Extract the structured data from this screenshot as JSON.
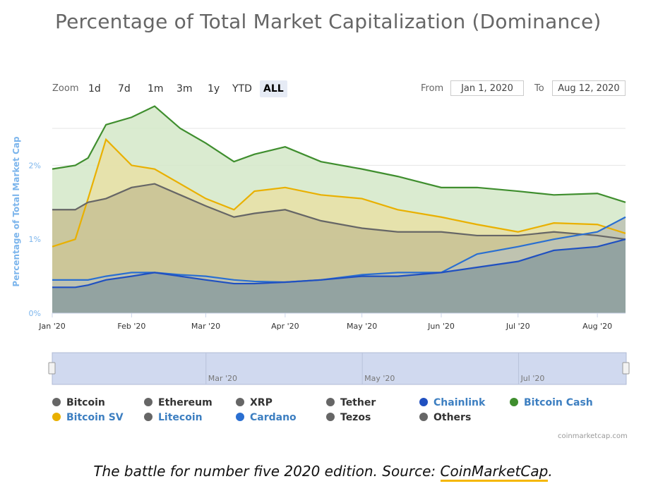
{
  "title": "Percentage of Total Market Capitalization (Dominance)",
  "zoom": {
    "label": "Zoom",
    "buttons": [
      "1d",
      "7d",
      "1m",
      "3m",
      "1y",
      "YTD",
      "ALL"
    ],
    "selected": "ALL"
  },
  "range": {
    "from_label": "From",
    "from_value": "Jan 1, 2020",
    "to_label": "To",
    "to_value": "Aug 12, 2020"
  },
  "credit": "coinmarketcap.com",
  "caption": {
    "text": "The battle for number five 2020 edition. Source: ",
    "link": "CoinMarketCap",
    "end": "."
  },
  "chart_data": {
    "type": "area",
    "title": "Percentage of Total Market Capitalization (Dominance)",
    "ylabel": "Percentage of Total Market Cap",
    "xlabel": "",
    "ylim": [
      0,
      2.5
    ],
    "yticks": [
      "0%",
      "1%",
      "2%"
    ],
    "xticks": [
      "Jan '20",
      "Feb '20",
      "Mar '20",
      "Apr '20",
      "May '20",
      "Jun '20",
      "Jul '20",
      "Aug '20"
    ],
    "x": [
      "2020-01-01",
      "2020-01-10",
      "2020-01-15",
      "2020-01-22",
      "2020-02-01",
      "2020-02-10",
      "2020-02-20",
      "2020-03-01",
      "2020-03-12",
      "2020-03-20",
      "2020-04-01",
      "2020-04-15",
      "2020-05-01",
      "2020-05-15",
      "2020-06-01",
      "2020-06-15",
      "2020-07-01",
      "2020-07-15",
      "2020-08-01",
      "2020-08-12"
    ],
    "series": [
      {
        "name": "Bitcoin Cash",
        "color": "#3f8e2e",
        "fill": "#d4e8c8",
        "values": [
          1.95,
          2.0,
          2.1,
          2.55,
          2.65,
          2.8,
          2.5,
          2.3,
          2.05,
          2.15,
          2.25,
          2.05,
          1.95,
          1.85,
          1.7,
          1.7,
          1.65,
          1.6,
          1.62,
          1.5
        ]
      },
      {
        "name": "Bitcoin SV",
        "color": "#e9b000",
        "fill": "#e8e0a6",
        "values": [
          0.9,
          1.0,
          1.55,
          2.35,
          2.0,
          1.95,
          1.75,
          1.55,
          1.4,
          1.65,
          1.7,
          1.6,
          1.55,
          1.4,
          1.3,
          1.2,
          1.1,
          1.22,
          1.2,
          1.08
        ]
      },
      {
        "name": "Cardano",
        "color": "#2a6fd1",
        "fill": "#bcc2b4",
        "values": [
          0.45,
          0.45,
          0.45,
          0.5,
          0.55,
          0.55,
          0.52,
          0.5,
          0.45,
          0.43,
          0.42,
          0.45,
          0.52,
          0.55,
          0.55,
          0.8,
          0.9,
          1.0,
          1.1,
          1.3
        ]
      },
      {
        "name": "Tezos",
        "color": "#666666",
        "fill": "#c7c194",
        "values": [
          1.4,
          1.4,
          1.5,
          1.55,
          1.7,
          1.75,
          1.6,
          1.45,
          1.3,
          1.35,
          1.4,
          1.25,
          1.15,
          1.1,
          1.1,
          1.05,
          1.05,
          1.1,
          1.05,
          1.0
        ]
      },
      {
        "name": "Chainlink",
        "color": "#2050c0",
        "fill": "#8b9e9f",
        "values": [
          0.35,
          0.35,
          0.38,
          0.45,
          0.5,
          0.55,
          0.5,
          0.45,
          0.4,
          0.4,
          0.42,
          0.45,
          0.5,
          0.5,
          0.55,
          0.62,
          0.7,
          0.85,
          0.9,
          1.0
        ]
      }
    ],
    "legend": [
      {
        "name": "Bitcoin",
        "color": "#666666"
      },
      {
        "name": "Ethereum",
        "color": "#666666"
      },
      {
        "name": "XRP",
        "color": "#666666"
      },
      {
        "name": "Tether",
        "color": "#666666"
      },
      {
        "name": "Chainlink",
        "color": "#2050c0"
      },
      {
        "name": "Bitcoin Cash",
        "color": "#3f8e2e"
      },
      {
        "name": "Bitcoin SV",
        "color": "#e9b000"
      },
      {
        "name": "Litecoin",
        "color": "#666666"
      },
      {
        "name": "Cardano",
        "color": "#2a6fd1"
      },
      {
        "name": "Tezos",
        "color": "#666666"
      },
      {
        "name": "Others",
        "color": "#666666"
      }
    ],
    "navigator": {
      "xticks": [
        "Mar '20",
        "May '20",
        "Jul '20"
      ]
    }
  }
}
